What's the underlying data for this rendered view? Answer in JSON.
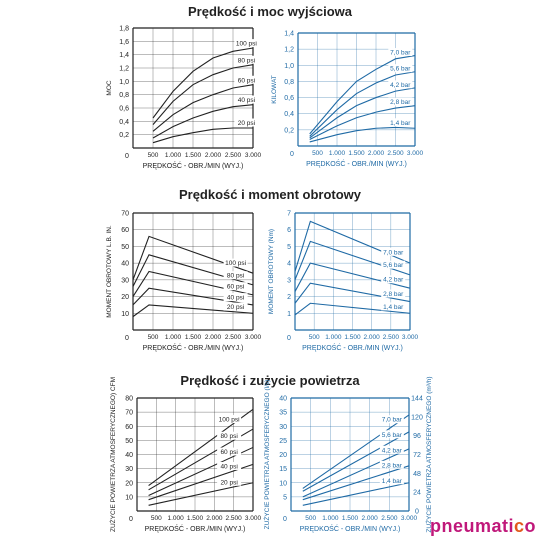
{
  "sections": [
    {
      "title": "Prędkość i moc wyjściowa"
    },
    {
      "title": "Prędkość i moment obrotowy"
    },
    {
      "title": "Prędkość i zużycie powietrza"
    }
  ],
  "colors": {
    "left": "#222222",
    "right": "#1f6aa5",
    "brand_main": "#c0187a",
    "brand_accent": "#e25a1c"
  },
  "brand": {
    "main": "pneumati",
    "accent": "c",
    "end": "o"
  },
  "chart_data": [
    {
      "type": "line",
      "id": "power-psi",
      "side": "left",
      "xlabel": "PRĘDKOŚĆ - OBR./MIN (WYJ.)",
      "ylabel": "MOC",
      "xlim": [
        0,
        3000
      ],
      "ylim": [
        0,
        1.8
      ],
      "xticks": [
        "0",
        "500",
        "1.000",
        "1.500",
        "2.000",
        "2.500",
        "3.000"
      ],
      "yticks": [
        "0",
        "0,2",
        "0,4",
        "0,6",
        "0,8",
        "1,0",
        "1,2",
        "1,4",
        "1,6",
        "1,8"
      ],
      "x": [
        500,
        1000,
        1500,
        2000,
        2500,
        3000
      ],
      "series": [
        {
          "name": "100 psi",
          "values": [
            0.45,
            0.85,
            1.15,
            1.35,
            1.45,
            1.5
          ]
        },
        {
          "name": "80 psi",
          "values": [
            0.35,
            0.7,
            0.95,
            1.1,
            1.2,
            1.25
          ]
        },
        {
          "name": "60 psi",
          "values": [
            0.25,
            0.5,
            0.68,
            0.8,
            0.9,
            0.95
          ]
        },
        {
          "name": "40 psi",
          "values": [
            0.15,
            0.32,
            0.45,
            0.55,
            0.62,
            0.65
          ]
        },
        {
          "name": "20 psi",
          "values": [
            0.08,
            0.17,
            0.23,
            0.28,
            0.3,
            0.3
          ]
        }
      ]
    },
    {
      "type": "line",
      "id": "power-bar",
      "side": "right",
      "xlabel": "PRĘDKOŚĆ - OBR./MIN (WYJ.)",
      "ylabel": "KILOWAT",
      "xlim": [
        0,
        3000
      ],
      "ylim": [
        0,
        1.4
      ],
      "xticks": [
        "0",
        "500",
        "1.000",
        "1.500",
        "2.000",
        "2.500",
        "3.000"
      ],
      "yticks": [
        "0",
        "0,2",
        "0,4",
        "0,6",
        "0,8",
        "1,0",
        "1,2",
        "1,4"
      ],
      "x": [
        300,
        1000,
        1500,
        2000,
        2500,
        3000
      ],
      "series": [
        {
          "name": "7,0 bar",
          "values": [
            0.15,
            0.55,
            0.8,
            0.95,
            1.08,
            1.12
          ]
        },
        {
          "name": "5,6 bar",
          "values": [
            0.12,
            0.45,
            0.65,
            0.78,
            0.88,
            0.92
          ]
        },
        {
          "name": "4,2 bar",
          "values": [
            0.1,
            0.35,
            0.5,
            0.6,
            0.68,
            0.72
          ]
        },
        {
          "name": "2,8 bar",
          "values": [
            0.08,
            0.25,
            0.35,
            0.42,
            0.47,
            0.5
          ]
        },
        {
          "name": "1,4 bar",
          "values": [
            0.05,
            0.14,
            0.19,
            0.22,
            0.23,
            0.22
          ]
        }
      ]
    },
    {
      "type": "line",
      "id": "torque-psi",
      "side": "left",
      "xlabel": "PRĘDKOŚĆ - OBR./MIN (WYJ.)",
      "ylabel": "MOMENT OBROTOWY L.B. IN.",
      "xlim": [
        0,
        3000
      ],
      "ylim": [
        0,
        70
      ],
      "xticks": [
        "0",
        "500",
        "1.000",
        "1.500",
        "2.000",
        "2.500",
        "3.000"
      ],
      "yticks": [
        "0",
        "10",
        "20",
        "30",
        "40",
        "50",
        "60",
        "70"
      ],
      "x": [
        0,
        400,
        3000
      ],
      "series": [
        {
          "name": "100 psi",
          "values": [
            30,
            56,
            34
          ]
        },
        {
          "name": "80 psi",
          "values": [
            26,
            45,
            27
          ]
        },
        {
          "name": "60 psi",
          "values": [
            20,
            35,
            21
          ]
        },
        {
          "name": "40 psi",
          "values": [
            15,
            25,
            15
          ]
        },
        {
          "name": "20 psi",
          "values": [
            8,
            15,
            10
          ]
        }
      ]
    },
    {
      "type": "line",
      "id": "torque-bar",
      "side": "right",
      "xlabel": "PRĘDKOŚĆ - OBR./MIN (WYJ.)",
      "ylabel": "MOMENT OBROTOWY (Nm)",
      "xlim": [
        0,
        3000
      ],
      "ylim": [
        0,
        7
      ],
      "xticks": [
        "0",
        "500",
        "1.000",
        "1.500",
        "2.000",
        "2.500",
        "3.000"
      ],
      "yticks": [
        "0",
        "1",
        "2",
        "3",
        "4",
        "5",
        "6",
        "7"
      ],
      "x": [
        0,
        400,
        3000
      ],
      "series": [
        {
          "name": "7,0 bar",
          "values": [
            3.5,
            6.5,
            4.0
          ]
        },
        {
          "name": "5,6 bar",
          "values": [
            3.0,
            5.3,
            3.3
          ]
        },
        {
          "name": "4,2 bar",
          "values": [
            2.3,
            4.0,
            2.5
          ]
        },
        {
          "name": "2,8 bar",
          "values": [
            1.6,
            2.8,
            1.7
          ]
        },
        {
          "name": "1,4 bar",
          "values": [
            0.9,
            1.6,
            1.0
          ]
        }
      ]
    },
    {
      "type": "line",
      "id": "air-psi",
      "side": "left",
      "xlabel": "PRĘDKOŚĆ - OBR./MIN (WYJ.)",
      "ylabel": "ZUŻYCIE POWIETRZA ATMOSFERYCZNEGO) CFM",
      "xlim": [
        0,
        3000
      ],
      "ylim": [
        0,
        80
      ],
      "xticks": [
        "0",
        "500",
        "1.000",
        "1.500",
        "2.000",
        "2.500",
        "3.000"
      ],
      "yticks": [
        "0",
        "10",
        "20",
        "30",
        "40",
        "50",
        "60",
        "70",
        "80"
      ],
      "x": [
        300,
        3000
      ],
      "series": [
        {
          "name": "100 psi",
          "values": [
            18,
            72
          ]
        },
        {
          "name": "80 psi",
          "values": [
            15,
            58
          ]
        },
        {
          "name": "60 psi",
          "values": [
            11,
            45
          ]
        },
        {
          "name": "40 psi",
          "values": [
            8,
            33
          ]
        },
        {
          "name": "20 psi",
          "values": [
            4,
            20
          ]
        }
      ]
    },
    {
      "type": "line",
      "id": "air-bar",
      "side": "right",
      "xlabel": "PRĘDKOŚĆ - OBR./MIN (WYJ.)",
      "ylabel": "ZUŻYCIE POWIETRZA ATMOSFERYCZNEGO (l/s)",
      "ylabel2": "ZUŻYCIE POWIETRZA ATMOSFERYCZNEGO (m³/h)",
      "xlim": [
        0,
        3000
      ],
      "ylim": [
        0,
        40
      ],
      "ylim2": [
        0,
        144
      ],
      "xticks": [
        "0",
        "500",
        "1.000",
        "1.500",
        "2.000",
        "2.500",
        "3.000"
      ],
      "yticks": [
        "0",
        "5",
        "10",
        "15",
        "20",
        "25",
        "30",
        "35",
        "40"
      ],
      "yticks2": [
        "0",
        "24",
        "48",
        "72",
        "96",
        "120",
        "144"
      ],
      "x": [
        300,
        3000
      ],
      "series": [
        {
          "name": "7,0 bar",
          "values": [
            8,
            34
          ]
        },
        {
          "name": "5,6 bar",
          "values": [
            7,
            28
          ]
        },
        {
          "name": "4,2 bar",
          "values": [
            5,
            22
          ]
        },
        {
          "name": "2,8 bar",
          "values": [
            4,
            16
          ]
        },
        {
          "name": "1,4 bar",
          "values": [
            2,
            10
          ]
        }
      ]
    }
  ]
}
